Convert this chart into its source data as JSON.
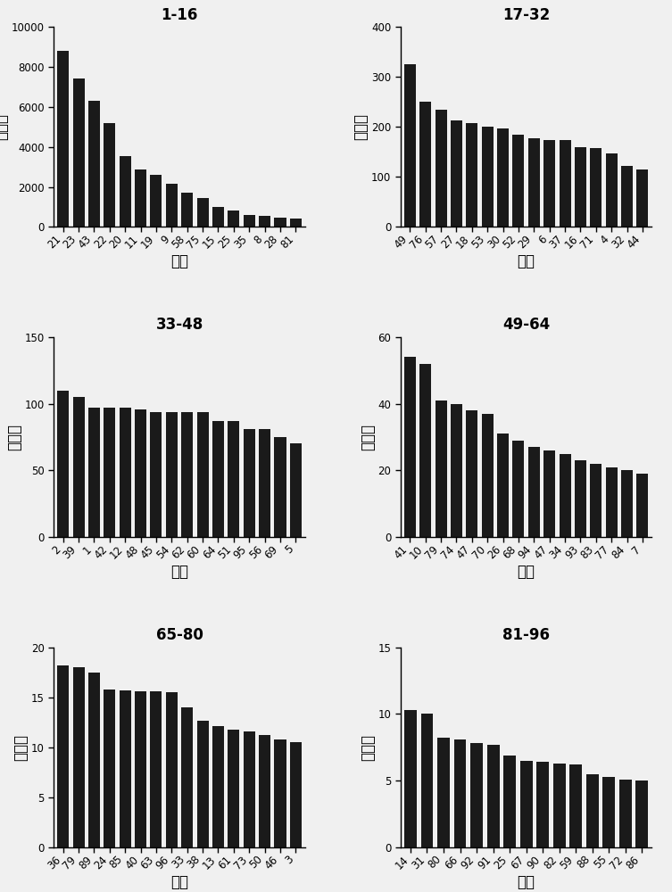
{
  "subplots": [
    {
      "title": "1-16",
      "categories": [
        "21",
        "23",
        "43",
        "22",
        "20",
        "11",
        "19",
        "9",
        "58",
        "75",
        "15",
        "25",
        "35",
        "8",
        "28",
        "81"
      ],
      "values": [
        8800,
        7400,
        6300,
        5200,
        3550,
        2850,
        2600,
        2150,
        1700,
        1450,
        1000,
        800,
        600,
        550,
        470,
        420
      ],
      "ylim": [
        0,
        10000
      ],
      "yticks": [
        0,
        2000,
        4000,
        6000,
        8000,
        10000
      ]
    },
    {
      "title": "17-32",
      "categories": [
        "49",
        "76",
        "57",
        "27",
        "18",
        "53",
        "30",
        "52",
        "29",
        "6",
        "37",
        "16",
        "71",
        "4",
        "32",
        "44"
      ],
      "values": [
        325,
        250,
        235,
        213,
        207,
        200,
        197,
        184,
        178,
        174,
        173,
        160,
        157,
        147,
        122,
        115
      ],
      "ylim": [
        0,
        400
      ],
      "yticks": [
        0,
        100,
        200,
        300,
        400
      ]
    },
    {
      "title": "33-48",
      "categories": [
        "2",
        "39",
        "1",
        "42",
        "12",
        "48",
        "45",
        "54",
        "62",
        "60",
        "64",
        "51",
        "95",
        "56",
        "69",
        "5"
      ],
      "values": [
        110,
        105,
        97,
        97,
        97,
        96,
        94,
        94,
        94,
        94,
        87,
        87,
        81,
        81,
        75,
        70
      ],
      "ylim": [
        0,
        150
      ],
      "yticks": [
        0,
        50,
        100,
        150
      ]
    },
    {
      "title": "49-64",
      "categories": [
        "41",
        "10",
        "79",
        "74",
        "47",
        "70",
        "26",
        "68",
        "94",
        "47",
        "34",
        "93",
        "83",
        "77",
        "84",
        "7"
      ],
      "values": [
        54,
        52,
        41,
        40,
        38,
        37,
        31,
        29,
        27,
        26,
        25,
        23,
        22,
        21,
        20,
        19
      ],
      "ylim": [
        0,
        60
      ],
      "yticks": [
        0,
        20,
        40,
        60
      ]
    },
    {
      "title": "65-80",
      "categories": [
        "36",
        "79",
        "89",
        "24",
        "85",
        "40",
        "63",
        "96",
        "33",
        "38",
        "13",
        "61",
        "73",
        "50",
        "46",
        "3"
      ],
      "values": [
        18.2,
        18.0,
        17.5,
        15.8,
        15.7,
        15.6,
        15.6,
        15.5,
        14.0,
        12.7,
        12.1,
        11.8,
        11.6,
        11.2,
        10.8,
        10.5
      ],
      "ylim": [
        0,
        20
      ],
      "yticks": [
        0,
        5,
        10,
        15,
        20
      ]
    },
    {
      "title": "81-96",
      "categories": [
        "14",
        "31",
        "80",
        "66",
        "92",
        "91",
        "25",
        "67",
        "90",
        "82",
        "59",
        "88",
        "55",
        "72",
        "86"
      ],
      "values": [
        10.3,
        10.0,
        8.2,
        8.1,
        7.8,
        7.7,
        6.9,
        6.5,
        6.4,
        6.3,
        6.2,
        5.5,
        5.3,
        5.1,
        5.0
      ],
      "ylim": [
        0,
        15
      ],
      "yticks": [
        0,
        5,
        10,
        15
      ]
    }
  ],
  "ylabel": "重数性",
  "xlabel": "台站",
  "bar_color": "#1a1a1a",
  "title_fontsize": 12,
  "label_fontsize": 12,
  "tick_fontsize": 8.5,
  "background_color": "#f0f0f0"
}
